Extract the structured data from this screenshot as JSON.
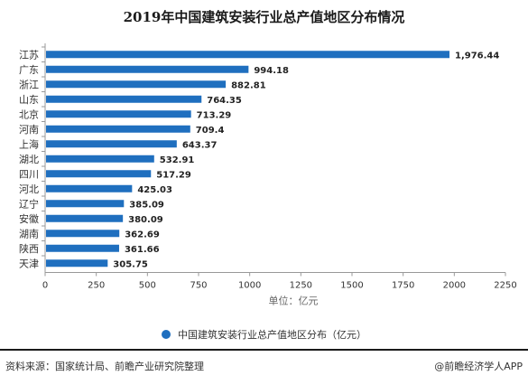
{
  "title": "2019年中国建筑安装行业总产值地区分布情况",
  "legend_label": "中国建筑安装行业总产值地区分布（亿元）",
  "footer": {
    "source": "资料来源：国家统计局、前瞻产业研究院整理",
    "brand": "@前瞻经济学人APP"
  },
  "colors": {
    "bar": "#1f6fbf",
    "axis": "#999999"
  },
  "chart_data": {
    "type": "bar",
    "orientation": "horizontal",
    "categories": [
      "江苏",
      "广东",
      "浙江",
      "山东",
      "北京",
      "河南",
      "上海",
      "湖北",
      "四川",
      "河北",
      "辽宁",
      "安徽",
      "湖南",
      "陕西",
      "天津"
    ],
    "values": [
      1976.44,
      994.18,
      882.81,
      764.35,
      713.29,
      709.4,
      643.37,
      532.91,
      517.29,
      425.03,
      385.09,
      380.09,
      362.69,
      361.66,
      305.75
    ],
    "value_labels": [
      "1,976.44",
      "994.18",
      "882.81",
      "764.35",
      "713.29",
      "709.4",
      "643.37",
      "532.91",
      "517.29",
      "425.03",
      "385.09",
      "380.09",
      "362.69",
      "361.66",
      "305.75"
    ],
    "x_ticks": [
      0,
      250,
      500,
      750,
      1000,
      1250,
      1500,
      1750,
      2000,
      2250
    ],
    "x_tick_labels": [
      "0",
      "250",
      "500",
      "750",
      "1000",
      "1250",
      "1500",
      "1750",
      "2000",
      "2250"
    ],
    "xlim": [
      0,
      2250
    ],
    "xlabel": "单位：亿元",
    "grid": false,
    "legend_position": "bottom"
  }
}
